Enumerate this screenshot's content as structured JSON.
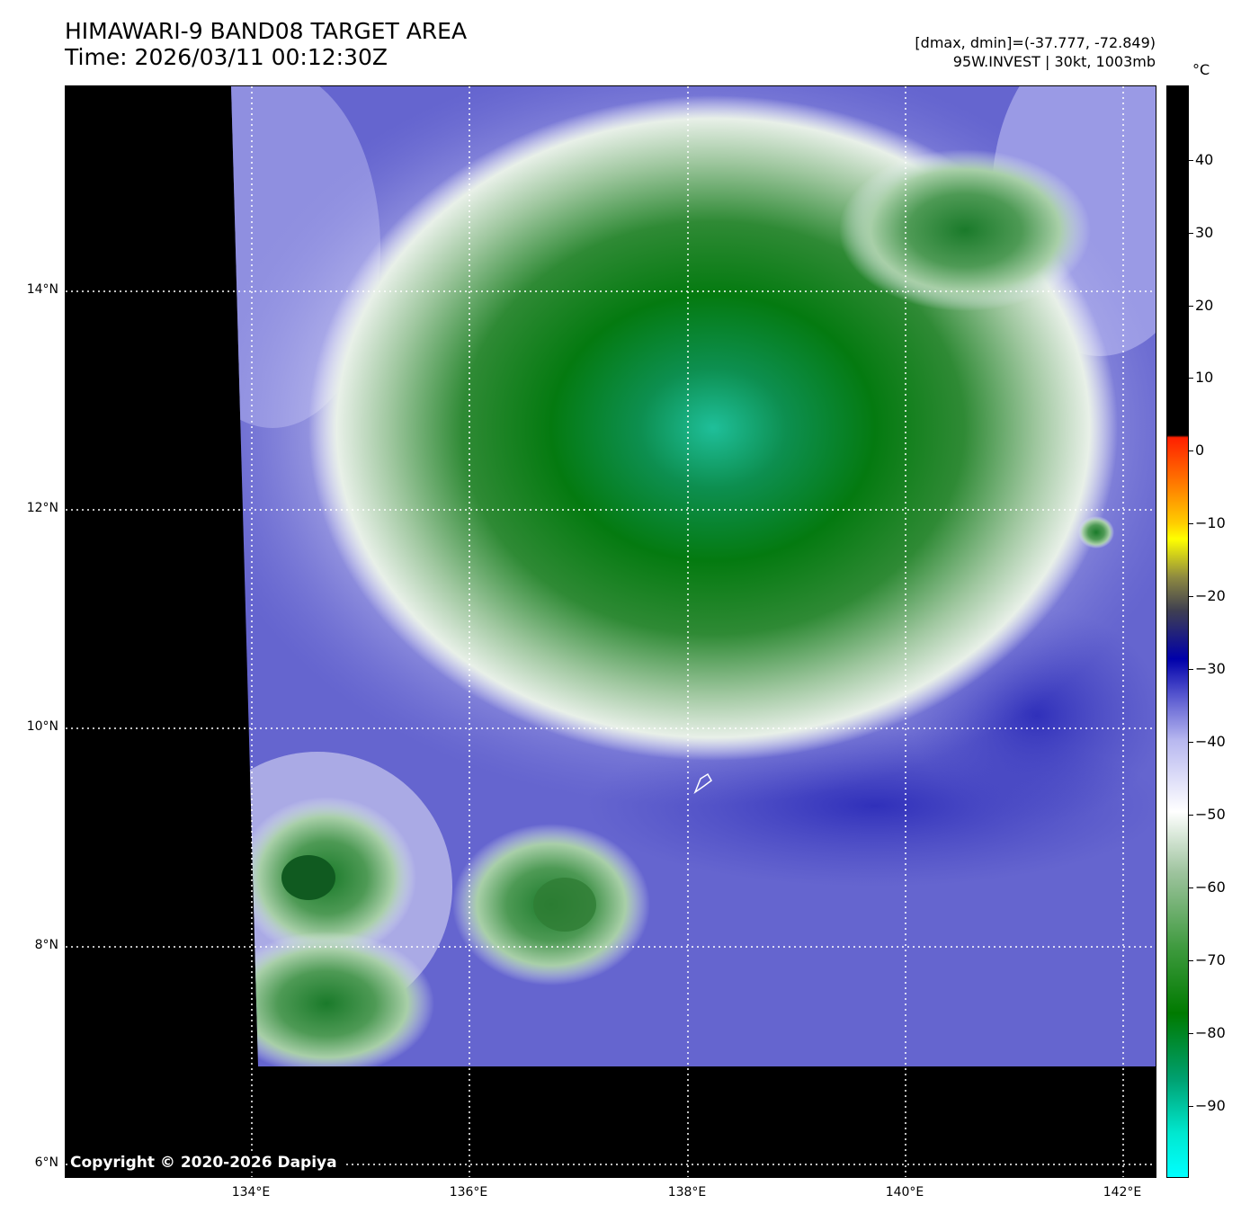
{
  "header": {
    "title": "HIMAWARI-9 BAND08 TARGET AREA",
    "time": "Time: 2026/03/11 00:12:30Z",
    "dmax_dmin": "[dmax, dmin]=(-37.777, -72.849)",
    "storm_info": "95W.INVEST | 30kt, 1003mb"
  },
  "map": {
    "copyright": "Copyright © 2020-2026 Dapiya",
    "lat_labels": [
      "14°N",
      "12°N",
      "10°N",
      "8°N",
      "6°N"
    ],
    "lon_labels": [
      "134°E",
      "136°E",
      "138°E",
      "140°E",
      "142°E"
    ]
  },
  "colorbar": {
    "unit": "°C",
    "labels": [
      "40",
      "30",
      "20",
      "10",
      "0",
      "−10",
      "−20",
      "−30",
      "−40",
      "−50",
      "−60",
      "−70",
      "−80",
      "−90"
    ]
  }
}
